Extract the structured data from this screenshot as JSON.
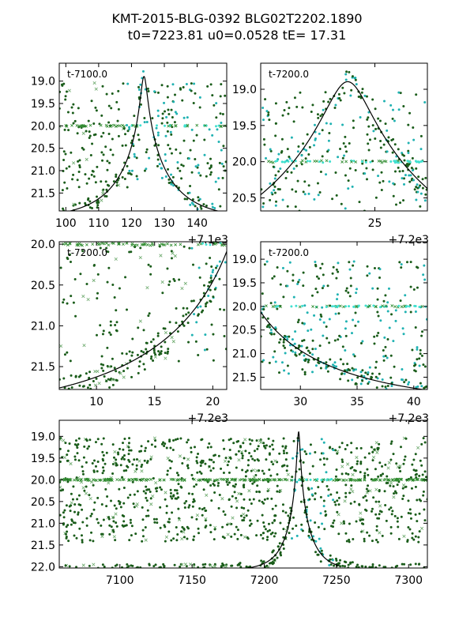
{
  "figure": {
    "title_line1": "KMT-2015-BLG-0392 BLG02T2202.1890",
    "title_line2": "t0=7223.81 u0=0.0528 tE=  17.31"
  },
  "colors": {
    "data_dark_green": "#1a5c1a",
    "data_green_x": "#2e8b2e",
    "data_cyan": "#20b2b2",
    "data_cyan_light": "#40e0d0",
    "model_curve": "#000000",
    "frame": "#000000"
  },
  "chart_data": [
    {
      "panel": "top-left",
      "type": "scatter",
      "label": "t-7100.0",
      "offset_label": "+7.1e3",
      "xlim": [
        98,
        149
      ],
      "ylim": [
        21.9,
        18.6
      ],
      "xticks": [
        100,
        110,
        120,
        130,
        140
      ],
      "yticks": [
        19.0,
        19.5,
        20.0,
        20.5,
        21.0,
        21.5
      ],
      "ytick_labels": [
        "19.0",
        "19.5",
        "20.0",
        "20.5",
        "21.0",
        "21.5"
      ],
      "model": {
        "t0": 7223.81,
        "u0": 0.0528,
        "tE": 17.31,
        "x_offset": 7100
      }
    },
    {
      "panel": "top-right",
      "type": "scatter",
      "label": "t-7200.0",
      "offset_label": "+7.2e3",
      "xlim": [
        20,
        27.3
      ],
      "ylim": [
        20.68,
        18.64
      ],
      "xticks": [
        25
      ],
      "yticks": [
        19.0,
        19.5,
        20.0,
        20.5
      ],
      "ytick_labels": [
        "19.0",
        "19.5",
        "20.0",
        "20.5"
      ],
      "model": {
        "t0": 7223.81,
        "u0": 0.0528,
        "tE": 17.31,
        "x_offset": 7200
      }
    },
    {
      "panel": "middle-left",
      "type": "scatter",
      "label": "t-7200.0",
      "offset_label": "+7.2e3",
      "xlim": [
        6.8,
        21.2
      ],
      "ylim": [
        21.78,
        19.97
      ],
      "xticks": [
        10,
        15,
        20
      ],
      "yticks": [
        20.0,
        20.5,
        21.0,
        21.5
      ],
      "ytick_labels": [
        "20.0",
        "20.5",
        "21.0",
        "21.5"
      ],
      "model": {
        "t0": 7223.81,
        "u0": 0.0528,
        "tE": 17.31,
        "x_offset": 7200
      }
    },
    {
      "panel": "middle-right",
      "type": "scatter",
      "label": "t-7200.0",
      "offset_label": "+7.2e3",
      "xlim": [
        26.5,
        41.2
      ],
      "ylim": [
        21.76,
        18.63
      ],
      "xticks": [
        30,
        35,
        40
      ],
      "yticks": [
        19.0,
        19.5,
        20.0,
        20.5,
        21.0,
        21.5
      ],
      "ytick_labels": [
        "19.0",
        "19.5",
        "20.0",
        "20.5",
        "21.0",
        "21.5"
      ],
      "model": {
        "t0": 7223.81,
        "u0": 0.0528,
        "tE": 17.31,
        "x_offset": 7200
      }
    },
    {
      "panel": "bottom",
      "type": "scatter",
      "label": "",
      "offset_label": "",
      "xlim": [
        7058,
        7313
      ],
      "ylim": [
        22.03,
        18.63
      ],
      "xticks": [
        7100,
        7150,
        7200,
        7250,
        7300
      ],
      "yticks": [
        19.0,
        19.5,
        20.0,
        20.5,
        21.0,
        21.5,
        22.0
      ],
      "ytick_labels": [
        "19.0",
        "19.5",
        "20.0",
        "20.5",
        "21.0",
        "21.5",
        "22.0"
      ],
      "model": {
        "t0": 7223.81,
        "u0": 0.0528,
        "tE": 17.31,
        "x_offset": 0,
        "x_range": [
          7183,
          7252
        ]
      }
    }
  ]
}
